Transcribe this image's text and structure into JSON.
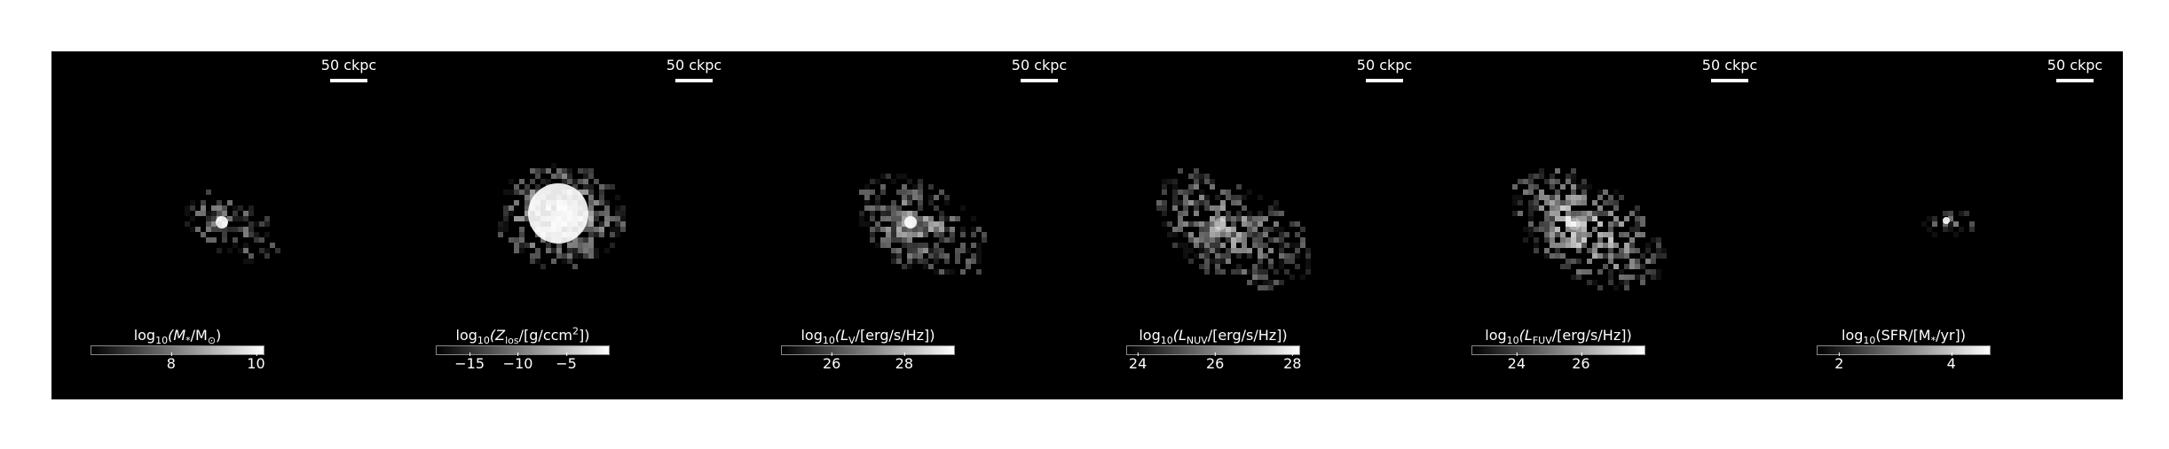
{
  "scalebar_label": "50 ckpc",
  "colors": {
    "background": "#000000",
    "foreground": "#ffffff",
    "page": "#ffffff"
  },
  "panels": [
    {
      "cbar_label": {
        "pre": "log",
        "sub1": "10",
        "mid": "(M",
        "sub2": "*",
        "post": "/M",
        "sub3": "⊙",
        "end": ")"
      },
      "cbar_range": [
        6.1,
        10.2
      ],
      "cbar_ticks": [
        {
          "value": 8,
          "label": "8"
        },
        {
          "value": 10,
          "label": "10"
        }
      ],
      "blob": {
        "concentration": "high",
        "fill": "dim"
      }
    },
    {
      "cbar_label": {
        "pre": "log",
        "sub1": "10",
        "mid": "(Z",
        "sub2": "los",
        "post": "/[g/ccm",
        "sup": "2",
        "end": "])"
      },
      "cbar_range": [
        -18.5,
        -0.5
      ],
      "cbar_ticks": [
        {
          "value": -15,
          "label": "−15"
        },
        {
          "value": -10,
          "label": "−10"
        },
        {
          "value": -5,
          "label": "−5"
        }
      ],
      "blob": {
        "concentration": "saturated",
        "fill": "bright"
      }
    },
    {
      "cbar_label": {
        "pre": "log",
        "sub1": "10",
        "mid": "(L",
        "sub2": "V",
        "post": "/[erg/s/Hz])",
        "end": ""
      },
      "cbar_range": [
        24.6,
        29.4
      ],
      "cbar_ticks": [
        {
          "value": 26,
          "label": "26"
        },
        {
          "value": 28,
          "label": "28"
        }
      ],
      "blob": {
        "concentration": "high",
        "fill": "medium"
      }
    },
    {
      "cbar_label": {
        "pre": "log",
        "sub1": "10",
        "mid": "(L",
        "sub2": "NUV",
        "post": "/[erg/s/Hz])",
        "end": ""
      },
      "cbar_range": [
        23.7,
        28.2
      ],
      "cbar_ticks": [
        {
          "value": 24,
          "label": "24"
        },
        {
          "value": 26,
          "label": "26"
        },
        {
          "value": 28,
          "label": "28"
        }
      ],
      "blob": {
        "concentration": "medium",
        "fill": "medium"
      }
    },
    {
      "cbar_label": {
        "pre": "log",
        "sub1": "10",
        "mid": "(L",
        "sub2": "FUV",
        "post": "/[erg/s/Hz])",
        "end": ""
      },
      "cbar_range": [
        22.6,
        28.0
      ],
      "cbar_ticks": [
        {
          "value": 24,
          "label": "24"
        },
        {
          "value": 26,
          "label": "26"
        }
      ],
      "blob": {
        "concentration": "medium",
        "fill": "bright"
      }
    },
    {
      "cbar_label": {
        "pre": "log",
        "sub1": "10",
        "mid": "(SFR/[M",
        "sub2": "*",
        "post": "/yr])",
        "end": ""
      },
      "cbar_range": [
        1.6,
        4.7
      ],
      "cbar_ticks": [
        {
          "value": 2,
          "label": "2"
        },
        {
          "value": 4,
          "label": "4"
        }
      ],
      "blob": {
        "concentration": "point",
        "fill": "faint"
      }
    }
  ]
}
